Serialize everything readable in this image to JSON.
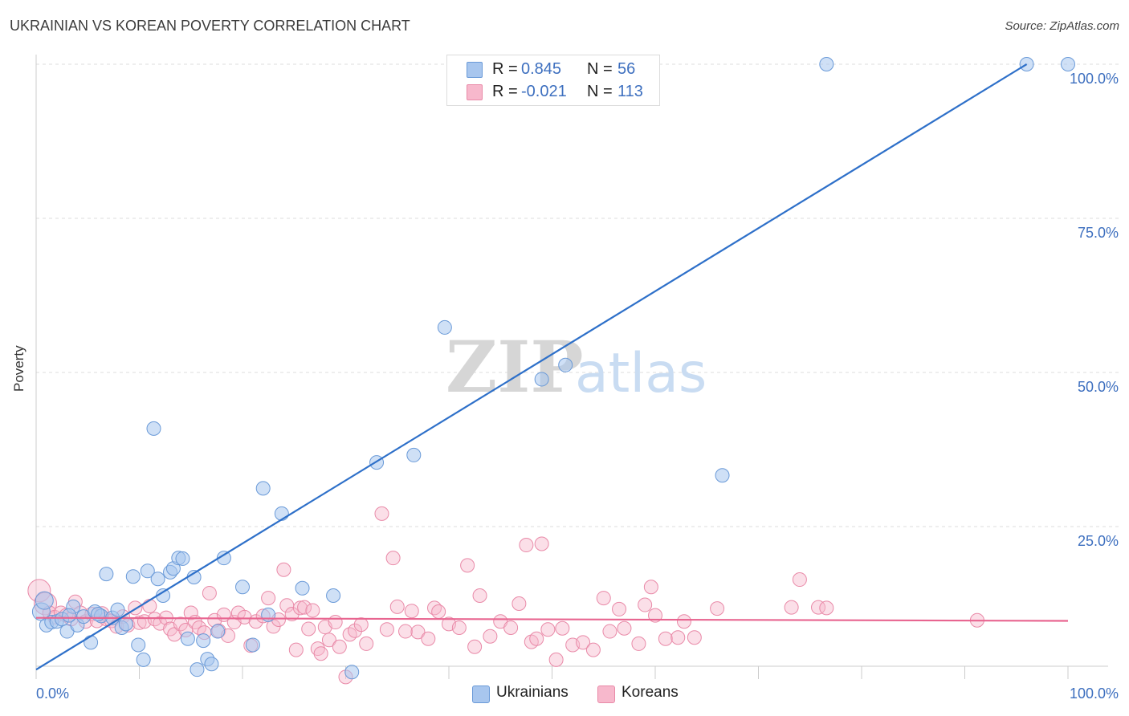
{
  "header": {
    "title": "UKRAINIAN VS KOREAN POVERTY CORRELATION CHART",
    "source": "Source: ZipAtlas.com"
  },
  "watermark": {
    "zip": "ZIP",
    "atlas": "atlas"
  },
  "legend_top": {
    "rows": [
      {
        "r_label": "R =",
        "r_value": "0.845",
        "n_label": "N =",
        "n_value": "56"
      },
      {
        "r_label": "R =",
        "r_value": "-0.021",
        "n_label": "N =",
        "n_value": "113"
      }
    ]
  },
  "legend_bottom": {
    "items": [
      {
        "label": "Ukrainians"
      },
      {
        "label": "Koreans"
      }
    ]
  },
  "colors": {
    "ukrainians_fill": "#a8c6ee",
    "ukrainians_stroke": "#6a9ad8",
    "ukrainians_line": "#2e70c9",
    "koreans_fill": "#f7b8cc",
    "koreans_stroke": "#e98aa8",
    "koreans_line": "#e86590",
    "tick_label": "#3d6fbf",
    "grid": "#dddddd"
  },
  "chart_data": {
    "type": "scatter",
    "title": "UKRAINIAN VS KOREAN POVERTY CORRELATION CHART",
    "xlabel": "",
    "ylabel": "Poverty",
    "xlim": [
      0,
      100
    ],
    "ylim": [
      0,
      100
    ],
    "x_tick_labels": [
      "0.0%",
      "100.0%"
    ],
    "y_ticks": [
      {
        "value": 25,
        "label": "25.0%"
      },
      {
        "value": 50,
        "label": "50.0%"
      },
      {
        "value": 75,
        "label": "75.0%"
      },
      {
        "value": 100,
        "label": "100.0%"
      }
    ],
    "grid": true,
    "series": [
      {
        "name": "Ukrainians",
        "r": 0.845,
        "n": 56,
        "trend": {
          "x": [
            0,
            96
          ],
          "y": [
            1.8,
            100
          ]
        },
        "points": [
          {
            "x": 0.5,
            "y": 11.2
          },
          {
            "x": 1.0,
            "y": 9.0
          },
          {
            "x": 1.5,
            "y": 9.5
          },
          {
            "x": 2.0,
            "y": 9.6
          },
          {
            "x": 2.5,
            "y": 10.0
          },
          {
            "x": 3.0,
            "y": 8.0
          },
          {
            "x": 3.6,
            "y": 12.0
          },
          {
            "x": 4.0,
            "y": 9.0
          },
          {
            "x": 4.6,
            "y": 10.4
          },
          {
            "x": 5.3,
            "y": 6.2
          },
          {
            "x": 5.7,
            "y": 11.2
          },
          {
            "x": 6.3,
            "y": 10.5
          },
          {
            "x": 6.8,
            "y": 17.3
          },
          {
            "x": 7.4,
            "y": 10.2
          },
          {
            "x": 7.9,
            "y": 11.5
          },
          {
            "x": 8.3,
            "y": 8.6
          },
          {
            "x": 8.7,
            "y": 9.2
          },
          {
            "x": 9.4,
            "y": 16.9
          },
          {
            "x": 9.9,
            "y": 5.8
          },
          {
            "x": 10.4,
            "y": 3.4
          },
          {
            "x": 10.8,
            "y": 17.8
          },
          {
            "x": 11.4,
            "y": 40.9
          },
          {
            "x": 11.8,
            "y": 16.5
          },
          {
            "x": 12.3,
            "y": 13.8
          },
          {
            "x": 13.0,
            "y": 17.6
          },
          {
            "x": 13.3,
            "y": 18.2
          },
          {
            "x": 13.8,
            "y": 19.9
          },
          {
            "x": 14.2,
            "y": 19.8
          },
          {
            "x": 14.7,
            "y": 6.8
          },
          {
            "x": 15.3,
            "y": 16.8
          },
          {
            "x": 15.6,
            "y": 1.8
          },
          {
            "x": 16.2,
            "y": 6.5
          },
          {
            "x": 16.6,
            "y": 3.5
          },
          {
            "x": 17.0,
            "y": 2.7
          },
          {
            "x": 17.6,
            "y": 8.0
          },
          {
            "x": 18.2,
            "y": 19.9
          },
          {
            "x": 20.0,
            "y": 15.2
          },
          {
            "x": 21.0,
            "y": 5.8
          },
          {
            "x": 22.0,
            "y": 31.2
          },
          {
            "x": 22.5,
            "y": 10.7
          },
          {
            "x": 23.8,
            "y": 27.1
          },
          {
            "x": 25.8,
            "y": 15.0
          },
          {
            "x": 28.8,
            "y": 13.8
          },
          {
            "x": 30.6,
            "y": 1.4
          },
          {
            "x": 33.0,
            "y": 35.4
          },
          {
            "x": 36.6,
            "y": 36.6
          },
          {
            "x": 39.6,
            "y": 57.3
          },
          {
            "x": 49.0,
            "y": 48.9
          },
          {
            "x": 51.3,
            "y": 51.2
          },
          {
            "x": 66.5,
            "y": 33.3
          },
          {
            "x": 76.6,
            "y": 100
          },
          {
            "x": 96.0,
            "y": 100
          },
          {
            "x": 100,
            "y": 100
          },
          {
            "x": 0.8,
            "y": 13.0
          },
          {
            "x": 3.2,
            "y": 10.6
          },
          {
            "x": 6.0,
            "y": 10.8
          }
        ]
      },
      {
        "name": "Koreans",
        "r": -0.021,
        "n": 113,
        "trend": {
          "x": [
            0,
            100
          ],
          "y": [
            10.2,
            9.7
          ]
        },
        "points": [
          {
            "x": 0.3,
            "y": 14.6
          },
          {
            "x": 0.9,
            "y": 12.5
          },
          {
            "x": 1.3,
            "y": 11.0
          },
          {
            "x": 1.8,
            "y": 10.3
          },
          {
            "x": 2.4,
            "y": 11.0
          },
          {
            "x": 2.9,
            "y": 10.6
          },
          {
            "x": 3.4,
            "y": 10.0
          },
          {
            "x": 3.8,
            "y": 12.8
          },
          {
            "x": 4.3,
            "y": 11.0
          },
          {
            "x": 4.8,
            "y": 9.6
          },
          {
            "x": 5.4,
            "y": 10.8
          },
          {
            "x": 5.9,
            "y": 9.7
          },
          {
            "x": 6.4,
            "y": 10.9
          },
          {
            "x": 6.8,
            "y": 10.0
          },
          {
            "x": 7.3,
            "y": 9.7
          },
          {
            "x": 7.8,
            "y": 8.8
          },
          {
            "x": 8.4,
            "y": 10.4
          },
          {
            "x": 8.9,
            "y": 9.0
          },
          {
            "x": 9.6,
            "y": 11.8
          },
          {
            "x": 10.0,
            "y": 9.4
          },
          {
            "x": 10.5,
            "y": 9.6
          },
          {
            "x": 11.0,
            "y": 12.1
          },
          {
            "x": 11.5,
            "y": 10.0
          },
          {
            "x": 12.0,
            "y": 9.3
          },
          {
            "x": 12.6,
            "y": 10.2
          },
          {
            "x": 13.0,
            "y": 8.4
          },
          {
            "x": 13.4,
            "y": 7.5
          },
          {
            "x": 14.0,
            "y": 9.2
          },
          {
            "x": 14.5,
            "y": 8.2
          },
          {
            "x": 15.0,
            "y": 11.0
          },
          {
            "x": 15.4,
            "y": 9.5
          },
          {
            "x": 15.8,
            "y": 8.6
          },
          {
            "x": 16.3,
            "y": 7.8
          },
          {
            "x": 16.8,
            "y": 14.2
          },
          {
            "x": 17.3,
            "y": 9.8
          },
          {
            "x": 17.7,
            "y": 8.1
          },
          {
            "x": 18.2,
            "y": 10.7
          },
          {
            "x": 18.6,
            "y": 7.3
          },
          {
            "x": 19.2,
            "y": 9.5
          },
          {
            "x": 19.6,
            "y": 11.0
          },
          {
            "x": 20.2,
            "y": 10.3
          },
          {
            "x": 20.8,
            "y": 5.7
          },
          {
            "x": 21.3,
            "y": 9.6
          },
          {
            "x": 22.0,
            "y": 10.5
          },
          {
            "x": 22.5,
            "y": 13.4
          },
          {
            "x": 23.0,
            "y": 8.8
          },
          {
            "x": 23.5,
            "y": 9.9
          },
          {
            "x": 24.0,
            "y": 18.0
          },
          {
            "x": 24.3,
            "y": 12.2
          },
          {
            "x": 24.8,
            "y": 10.8
          },
          {
            "x": 25.2,
            "y": 5.0
          },
          {
            "x": 25.6,
            "y": 11.8
          },
          {
            "x": 26.0,
            "y": 11.9
          },
          {
            "x": 26.4,
            "y": 8.4
          },
          {
            "x": 26.8,
            "y": 11.4
          },
          {
            "x": 27.3,
            "y": 5.2
          },
          {
            "x": 27.6,
            "y": 4.4
          },
          {
            "x": 28.0,
            "y": 8.7
          },
          {
            "x": 28.4,
            "y": 6.6
          },
          {
            "x": 29.0,
            "y": 9.5
          },
          {
            "x": 29.4,
            "y": 5.5
          },
          {
            "x": 30.0,
            "y": 0.6
          },
          {
            "x": 30.4,
            "y": 7.5
          },
          {
            "x": 30.9,
            "y": 8.1
          },
          {
            "x": 31.5,
            "y": 9.1
          },
          {
            "x": 32.0,
            "y": 6.0
          },
          {
            "x": 33.5,
            "y": 27.1
          },
          {
            "x": 34.0,
            "y": 8.3
          },
          {
            "x": 34.6,
            "y": 19.9
          },
          {
            "x": 35.0,
            "y": 12.0
          },
          {
            "x": 35.8,
            "y": 8.0
          },
          {
            "x": 36.4,
            "y": 11.3
          },
          {
            "x": 37.0,
            "y": 7.9
          },
          {
            "x": 38.0,
            "y": 6.8
          },
          {
            "x": 38.6,
            "y": 11.8
          },
          {
            "x": 39.0,
            "y": 11.2
          },
          {
            "x": 40.0,
            "y": 9.2
          },
          {
            "x": 41.0,
            "y": 8.6
          },
          {
            "x": 41.8,
            "y": 18.7
          },
          {
            "x": 42.5,
            "y": 5.5
          },
          {
            "x": 43.0,
            "y": 13.8
          },
          {
            "x": 44.0,
            "y": 7.2
          },
          {
            "x": 45.0,
            "y": 9.6
          },
          {
            "x": 46.0,
            "y": 8.6
          },
          {
            "x": 46.8,
            "y": 12.5
          },
          {
            "x": 47.5,
            "y": 22.0
          },
          {
            "x": 48.0,
            "y": 6.3
          },
          {
            "x": 48.5,
            "y": 6.8
          },
          {
            "x": 49.0,
            "y": 22.2
          },
          {
            "x": 49.6,
            "y": 8.3
          },
          {
            "x": 50.4,
            "y": 3.4
          },
          {
            "x": 51.0,
            "y": 8.5
          },
          {
            "x": 52.0,
            "y": 5.8
          },
          {
            "x": 53.0,
            "y": 6.2
          },
          {
            "x": 54.0,
            "y": 5.0
          },
          {
            "x": 55.0,
            "y": 13.4
          },
          {
            "x": 55.6,
            "y": 8.0
          },
          {
            "x": 56.5,
            "y": 11.6
          },
          {
            "x": 57.0,
            "y": 8.5
          },
          {
            "x": 58.4,
            "y": 6.0
          },
          {
            "x": 59.0,
            "y": 12.3
          },
          {
            "x": 59.6,
            "y": 15.2
          },
          {
            "x": 60.0,
            "y": 10.6
          },
          {
            "x": 61.0,
            "y": 6.8
          },
          {
            "x": 62.2,
            "y": 7.0
          },
          {
            "x": 62.8,
            "y": 9.6
          },
          {
            "x": 63.8,
            "y": 7.0
          },
          {
            "x": 66.0,
            "y": 11.7
          },
          {
            "x": 74.0,
            "y": 16.4
          },
          {
            "x": 73.2,
            "y": 11.9
          },
          {
            "x": 75.8,
            "y": 11.9
          },
          {
            "x": 76.6,
            "y": 11.8
          },
          {
            "x": 91.2,
            "y": 9.8
          }
        ]
      }
    ]
  }
}
